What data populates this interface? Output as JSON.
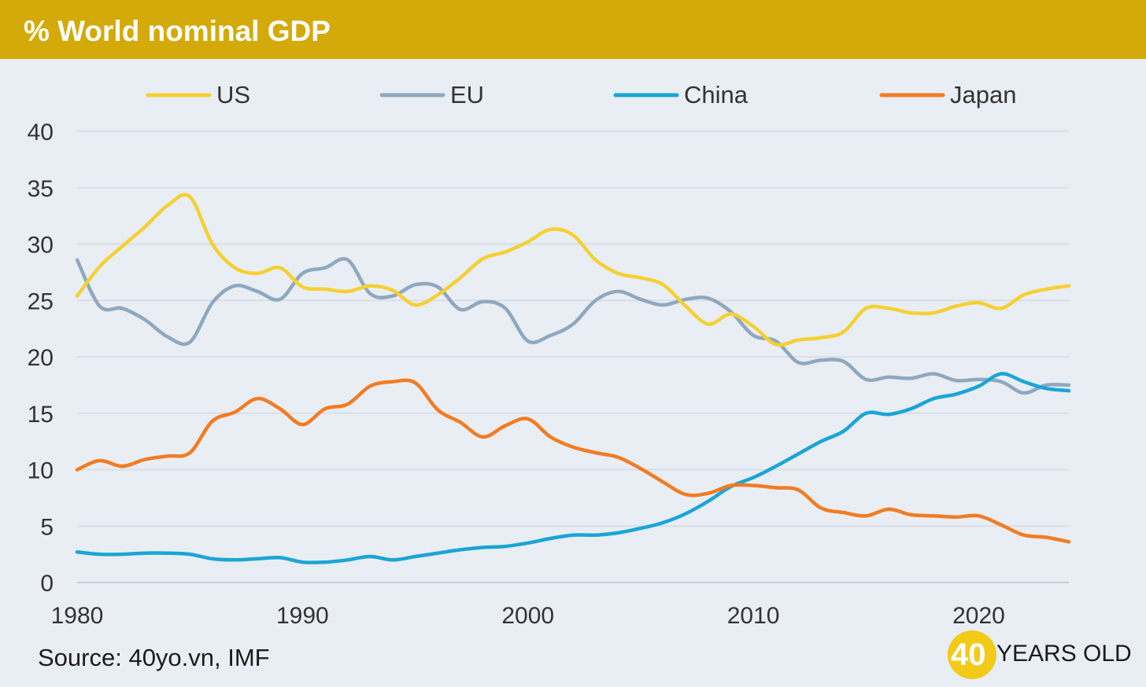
{
  "header": {
    "title": "% World nominal GDP",
    "background": "#d4aa0a"
  },
  "source": "Source: 40yo.vn, IMF",
  "logo": {
    "number": "40",
    "text": "YEARS OLD",
    "color": "#f3ca18"
  },
  "chart_data": {
    "type": "line",
    "title": "% World nominal GDP",
    "xlabel": "",
    "ylabel": "",
    "xlim": [
      1980,
      2024
    ],
    "ylim": [
      0,
      40
    ],
    "x_ticks": [
      "1980",
      "1990",
      "2000",
      "2010",
      "2020"
    ],
    "x_tick_values": [
      1980,
      1990,
      2000,
      2010,
      2020
    ],
    "y_ticks": [
      "0",
      "5",
      "10",
      "15",
      "20",
      "25",
      "30",
      "35",
      "40"
    ],
    "y_tick_values": [
      0,
      5,
      10,
      15,
      20,
      25,
      30,
      35,
      40
    ],
    "grid": "horizontal",
    "legend_position": "top",
    "x": [
      1980,
      1981,
      1982,
      1983,
      1984,
      1985,
      1986,
      1987,
      1988,
      1989,
      1990,
      1991,
      1992,
      1993,
      1994,
      1995,
      1996,
      1997,
      1998,
      1999,
      2000,
      2001,
      2002,
      2003,
      2004,
      2005,
      2006,
      2007,
      2008,
      2009,
      2010,
      2011,
      2012,
      2013,
      2014,
      2015,
      2016,
      2017,
      2018,
      2019,
      2020,
      2021,
      2022,
      2023,
      2024
    ],
    "series": [
      {
        "name": "US",
        "color": "#f5d033",
        "values": [
          25.4,
          28.0,
          29.8,
          31.5,
          33.4,
          34.2,
          30.0,
          27.9,
          27.4,
          27.9,
          26.2,
          26.0,
          25.8,
          26.3,
          25.9,
          24.6,
          25.5,
          27.0,
          28.7,
          29.3,
          30.2,
          31.3,
          30.8,
          28.6,
          27.4,
          27.0,
          26.4,
          24.5,
          22.9,
          23.8,
          22.7,
          21.1,
          21.5,
          21.7,
          22.2,
          24.3,
          24.3,
          23.9,
          23.9,
          24.5,
          24.8,
          24.3,
          25.5,
          26.0,
          26.3
        ]
      },
      {
        "name": "EU",
        "color": "#8fa8bf",
        "values": [
          28.6,
          24.5,
          24.3,
          23.3,
          21.8,
          21.3,
          24.8,
          26.3,
          25.8,
          25.1,
          27.4,
          27.9,
          28.6,
          25.6,
          25.4,
          26.4,
          26.2,
          24.2,
          24.9,
          24.3,
          21.4,
          21.9,
          22.9,
          25.0,
          25.8,
          25.1,
          24.6,
          25.1,
          25.2,
          24.0,
          21.9,
          21.4,
          19.5,
          19.7,
          19.6,
          18.0,
          18.2,
          18.1,
          18.5,
          17.9,
          18.0,
          17.8,
          16.8,
          17.5,
          17.5
        ]
      },
      {
        "name": "China",
        "color": "#1aa5d6",
        "values": [
          2.7,
          2.5,
          2.5,
          2.6,
          2.6,
          2.5,
          2.1,
          2.0,
          2.1,
          2.2,
          1.8,
          1.8,
          2.0,
          2.3,
          2.0,
          2.3,
          2.6,
          2.9,
          3.1,
          3.2,
          3.5,
          3.9,
          4.2,
          4.2,
          4.4,
          4.8,
          5.3,
          6.1,
          7.2,
          8.5,
          9.3,
          10.3,
          11.4,
          12.5,
          13.4,
          15.0,
          14.9,
          15.4,
          16.3,
          16.7,
          17.4,
          18.5,
          17.8,
          17.2,
          17.0
        ]
      },
      {
        "name": "Japan",
        "color": "#f27c22",
        "values": [
          10.0,
          10.8,
          10.3,
          10.9,
          11.2,
          11.5,
          14.3,
          15.1,
          16.3,
          15.4,
          14.0,
          15.4,
          15.8,
          17.4,
          17.8,
          17.7,
          15.3,
          14.2,
          12.9,
          13.9,
          14.5,
          12.9,
          12.0,
          11.5,
          11.1,
          10.1,
          8.9,
          7.8,
          7.9,
          8.6,
          8.6,
          8.4,
          8.2,
          6.6,
          6.2,
          5.9,
          6.5,
          6.0,
          5.9,
          5.8,
          5.9,
          5.1,
          4.2,
          4.0,
          3.6
        ]
      }
    ]
  }
}
